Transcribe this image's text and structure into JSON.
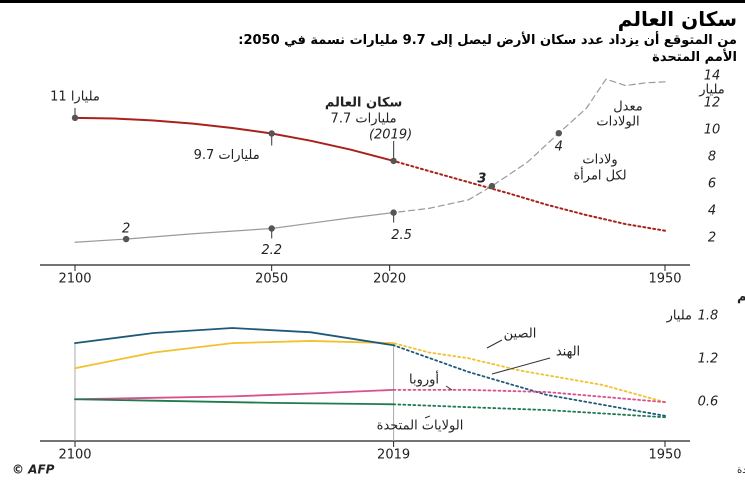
{
  "title": "سكان العالم",
  "subtitle": [
    "من المتوقع أن يزداد عدد سكان الأرض ليصل إلى 9.7 مليارات نسمة في 2050:",
    "الأمم المتحدة"
  ],
  "source": "المصدر: شعبة السكان التابعة للأمم المتحدة",
  "credit": "© AFP",
  "chart_data": [
    {
      "type": "line",
      "ylabel": "مليار",
      "xlim": [
        2100,
        1950
      ],
      "xticks": [
        2100,
        2050,
        2020,
        1950
      ],
      "ylim": [
        0,
        14
      ],
      "yticks": [
        2,
        4,
        6,
        8,
        10,
        12,
        14
      ],
      "y2lim": [
        1.51,
        5.08
      ],
      "dotted_after": 2019,
      "series": [
        {
          "color": "#a8221b",
          "x": [
            1950,
            1960,
            1970,
            1980,
            1990,
            2000,
            2010,
            2019,
            2030,
            2040,
            2050,
            2060,
            2070,
            2080,
            2090,
            2100
          ],
          "values": [
            2.54,
            3.03,
            3.7,
            4.46,
            5.33,
            6.14,
            6.96,
            7.71,
            8.55,
            9.2,
            9.74,
            10.15,
            10.47,
            10.7,
            10.85,
            10.9
          ]
        },
        {
          "color": "#9a9a9a",
          "axis": "y2",
          "x": [
            1950,
            1955,
            1960,
            1965,
            1970,
            1977,
            1985,
            1994,
            2000,
            2010,
            2019,
            2030,
            2040,
            2050,
            2070,
            2087,
            2100
          ],
          "values": [
            4.97,
            4.95,
            4.9,
            5.02,
            4.47,
            4.0,
            3.45,
            3.0,
            2.74,
            2.58,
            2.5,
            2.4,
            2.3,
            2.2,
            2.1,
            2,
            1.94
          ]
        }
      ],
      "annotations": [
        "11 مليارا",
        "9.7 مليارات",
        "سكان العالم",
        "7.7 مليارات",
        "(2019)",
        [
          "معدل",
          "الولادات"
        ],
        [
          "ولادات",
          "لكل امرأة"
        ]
      ]
    },
    {
      "type": "line",
      "title": "بعض مناطق العالم",
      "ylabel": "مليار",
      "xlim": [
        2100,
        1950
      ],
      "xticks": [
        2100,
        2019,
        1950
      ],
      "ylim": [
        0.06,
        1.88
      ],
      "yticks": [
        0.6,
        1.2,
        1.8
      ],
      "dotted_after": 2019,
      "series": [
        {
          "name": "الصين",
          "color": "#f2c12e",
          "x": [
            1950,
            1966,
            1987,
            2000,
            2010,
            2019,
            2040,
            2060,
            2080,
            2100
          ],
          "values": [
            0.6,
            0.84,
            1.04,
            1.21,
            1.29,
            1.42,
            1.45,
            1.42,
            1.29,
            1.07
          ]
        },
        {
          "name": "الهند",
          "color": "#1d5a7a",
          "x": [
            1950,
            1980,
            2000,
            2019,
            2040,
            2060,
            2080,
            2100
          ],
          "values": [
            0.41,
            0.7,
            1.02,
            1.39,
            1.57,
            1.63,
            1.56,
            1.42
          ]
        },
        {
          "name": "أوروبا",
          "color": "#d9508a",
          "x": [
            1950,
            1980,
            2000,
            2019,
            2040,
            2060,
            2080,
            2100
          ],
          "values": [
            0.6,
            0.74,
            0.77,
            0.77,
            0.72,
            0.68,
            0.66,
            0.64
          ]
        },
        {
          "name": "الولايات المتحدة",
          "color": "#1f7a4f",
          "x": [
            1950,
            1980,
            2000,
            2019,
            2050,
            2100
          ],
          "values": [
            0.39,
            0.49,
            0.53,
            0.57,
            0.59,
            0.64
          ]
        }
      ]
    }
  ]
}
